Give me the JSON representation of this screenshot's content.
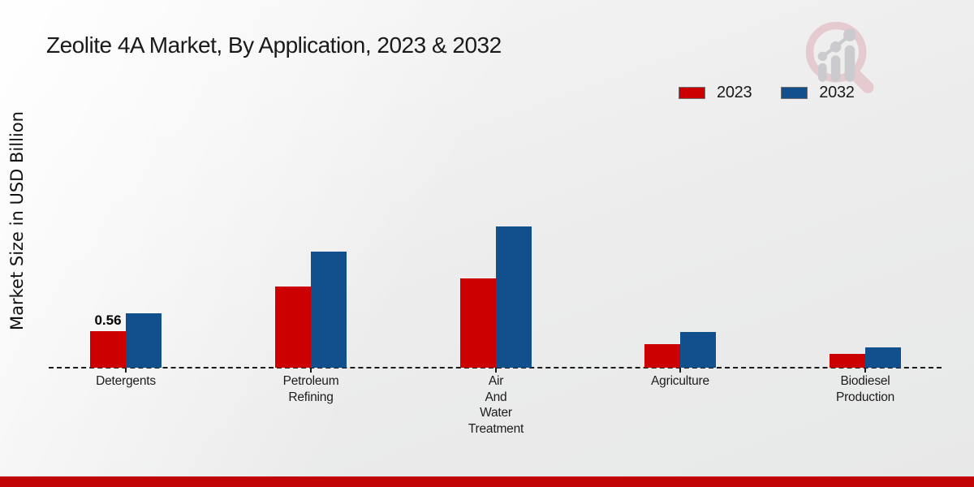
{
  "title": "Zeolite 4A Market, By Application, 2023 & 2032",
  "ylabel": "Market Size in USD Billion",
  "legend": {
    "items": [
      {
        "label": "2023",
        "color": "#cc0000"
      },
      {
        "label": "2032",
        "color": "#11508d"
      }
    ]
  },
  "branding": {
    "logo": "magnifier-growth-chart-icon",
    "ring_color": "#e5c8cc",
    "bars_color": "#c7c7cc"
  },
  "footer": {
    "bar_color": "#c00404"
  },
  "chart_data": {
    "type": "bar",
    "title": "Zeolite 4A Market, By Application, 2023 & 2032",
    "ylabel": "Market Size in USD Billion",
    "unit": "USD Billion",
    "grid": false,
    "legend_position": "top-right",
    "baseline": 0,
    "ylim": [
      0,
      2.5
    ],
    "categories": [
      "Detergents",
      "Petroleum Refining",
      "Air And Water Treatment",
      "Agriculture",
      "Biodiesel Production"
    ],
    "category_label_lines": [
      [
        "Detergents"
      ],
      [
        "Petroleum",
        "Refining"
      ],
      [
        "Air",
        "And",
        "Water",
        "Treatment"
      ],
      [
        "Agriculture"
      ],
      [
        "Biodiesel",
        "Production"
      ]
    ],
    "series": [
      {
        "name": "2023",
        "color": "#cc0000",
        "values": [
          0.56,
          1.24,
          1.37,
          0.36,
          0.21
        ]
      },
      {
        "name": "2032",
        "color": "#11508d",
        "values": [
          0.83,
          1.78,
          2.17,
          0.55,
          0.31
        ]
      }
    ],
    "annotations": [
      {
        "cat_index": 0,
        "series_index": 0,
        "text": "0.56"
      }
    ]
  }
}
